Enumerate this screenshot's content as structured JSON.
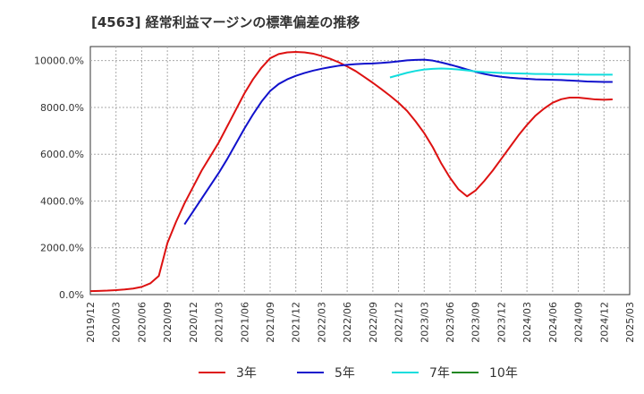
{
  "chart_data": {
    "type": "line",
    "title": "[4563]  経常利益マージンの標準偏差の推移",
    "xlabel": "",
    "ylabel": "",
    "ylim": [
      0,
      10600
    ],
    "y_ticks": [
      "0.0%",
      "2000.0%",
      "4000.0%",
      "6000.0%",
      "8000.0%",
      "10000.0%"
    ],
    "y_tick_values": [
      0,
      2000,
      4000,
      6000,
      8000,
      10000
    ],
    "x_ticks": [
      "2019/12",
      "2020/03",
      "2020/06",
      "2020/09",
      "2020/12",
      "2021/03",
      "2021/06",
      "2021/09",
      "2021/12",
      "2022/03",
      "2022/06",
      "2022/09",
      "2022/12",
      "2023/03",
      "2023/06",
      "2023/09",
      "2023/12",
      "2024/03",
      "2024/06",
      "2024/09",
      "2024/12",
      "2025/03"
    ],
    "grid": true,
    "legend_position": "bottom",
    "series": [
      {
        "name": "3年",
        "color": "#dd1111",
        "points": [
          [
            "2019/12",
            150
          ],
          [
            "2020/01",
            160
          ],
          [
            "2020/02",
            170
          ],
          [
            "2020/03",
            190
          ],
          [
            "2020/04",
            220
          ],
          [
            "2020/05",
            260
          ],
          [
            "2020/06",
            330
          ],
          [
            "2020/07",
            480
          ],
          [
            "2020/08",
            800
          ],
          [
            "2020/09",
            2200
          ],
          [
            "2020/10",
            3100
          ],
          [
            "2020/11",
            3900
          ],
          [
            "2020/12",
            4600
          ],
          [
            "2021/01",
            5300
          ],
          [
            "2021/02",
            5900
          ],
          [
            "2021/03",
            6500
          ],
          [
            "2021/04",
            7200
          ],
          [
            "2021/05",
            7900
          ],
          [
            "2021/06",
            8600
          ],
          [
            "2021/07",
            9200
          ],
          [
            "2021/08",
            9700
          ],
          [
            "2021/09",
            10100
          ],
          [
            "2021/10",
            10280
          ],
          [
            "2021/11",
            10350
          ],
          [
            "2021/12",
            10370
          ],
          [
            "2022/01",
            10350
          ],
          [
            "2022/02",
            10300
          ],
          [
            "2022/03",
            10200
          ],
          [
            "2022/04",
            10080
          ],
          [
            "2022/05",
            9930
          ],
          [
            "2022/06",
            9750
          ],
          [
            "2022/07",
            9550
          ],
          [
            "2022/08",
            9300
          ],
          [
            "2022/09",
            9050
          ],
          [
            "2022/10",
            8780
          ],
          [
            "2022/11",
            8500
          ],
          [
            "2022/12",
            8200
          ],
          [
            "2023/01",
            7850
          ],
          [
            "2023/02",
            7400
          ],
          [
            "2023/03",
            6900
          ],
          [
            "2023/04",
            6300
          ],
          [
            "2023/05",
            5600
          ],
          [
            "2023/06",
            5000
          ],
          [
            "2023/07",
            4500
          ],
          [
            "2023/08",
            4200
          ],
          [
            "2023/09",
            4450
          ],
          [
            "2023/10",
            4850
          ],
          [
            "2023/11",
            5300
          ],
          [
            "2023/12",
            5800
          ],
          [
            "2024/01",
            6300
          ],
          [
            "2024/02",
            6800
          ],
          [
            "2024/03",
            7250
          ],
          [
            "2024/04",
            7650
          ],
          [
            "2024/05",
            7950
          ],
          [
            "2024/06",
            8200
          ],
          [
            "2024/07",
            8350
          ],
          [
            "2024/08",
            8420
          ],
          [
            "2024/09",
            8420
          ],
          [
            "2024/10",
            8380
          ],
          [
            "2024/11",
            8340
          ],
          [
            "2024/12",
            8330
          ],
          [
            "2025/01",
            8340
          ]
        ]
      },
      {
        "name": "5年",
        "color": "#1111cc",
        "points": [
          [
            "2020/11",
            3000
          ],
          [
            "2020/12",
            3550
          ],
          [
            "2021/01",
            4100
          ],
          [
            "2021/02",
            4650
          ],
          [
            "2021/03",
            5200
          ],
          [
            "2021/04",
            5800
          ],
          [
            "2021/05",
            6450
          ],
          [
            "2021/06",
            7100
          ],
          [
            "2021/07",
            7700
          ],
          [
            "2021/08",
            8250
          ],
          [
            "2021/09",
            8700
          ],
          [
            "2021/10",
            9000
          ],
          [
            "2021/11",
            9200
          ],
          [
            "2021/12",
            9350
          ],
          [
            "2022/01",
            9470
          ],
          [
            "2022/02",
            9570
          ],
          [
            "2022/03",
            9650
          ],
          [
            "2022/04",
            9720
          ],
          [
            "2022/05",
            9780
          ],
          [
            "2022/06",
            9820
          ],
          [
            "2022/07",
            9850
          ],
          [
            "2022/08",
            9870
          ],
          [
            "2022/09",
            9880
          ],
          [
            "2022/10",
            9900
          ],
          [
            "2022/11",
            9930
          ],
          [
            "2022/12",
            9970
          ],
          [
            "2023/01",
            10010
          ],
          [
            "2023/02",
            10030
          ],
          [
            "2023/03",
            10040
          ],
          [
            "2023/04",
            10000
          ],
          [
            "2023/05",
            9920
          ],
          [
            "2023/06",
            9830
          ],
          [
            "2023/07",
            9730
          ],
          [
            "2023/08",
            9620
          ],
          [
            "2023/09",
            9520
          ],
          [
            "2023/10",
            9430
          ],
          [
            "2023/11",
            9360
          ],
          [
            "2023/12",
            9310
          ],
          [
            "2024/01",
            9270
          ],
          [
            "2024/02",
            9240
          ],
          [
            "2024/03",
            9220
          ],
          [
            "2024/04",
            9200
          ],
          [
            "2024/05",
            9190
          ],
          [
            "2024/06",
            9180
          ],
          [
            "2024/07",
            9170
          ],
          [
            "2024/08",
            9150
          ],
          [
            "2024/09",
            9130
          ],
          [
            "2024/10",
            9110
          ],
          [
            "2024/11",
            9100
          ],
          [
            "2024/12",
            9090
          ],
          [
            "2025/01",
            9090
          ]
        ]
      },
      {
        "name": "7年",
        "color": "#11dddd",
        "points": [
          [
            "2022/11",
            9280
          ],
          [
            "2022/12",
            9380
          ],
          [
            "2023/01",
            9480
          ],
          [
            "2023/02",
            9560
          ],
          [
            "2023/03",
            9620
          ],
          [
            "2023/04",
            9650
          ],
          [
            "2023/05",
            9660
          ],
          [
            "2023/06",
            9650
          ],
          [
            "2023/07",
            9620
          ],
          [
            "2023/08",
            9580
          ],
          [
            "2023/09",
            9540
          ],
          [
            "2023/10",
            9510
          ],
          [
            "2023/11",
            9490
          ],
          [
            "2023/12",
            9470
          ],
          [
            "2024/01",
            9460
          ],
          [
            "2024/02",
            9450
          ],
          [
            "2024/03",
            9440
          ],
          [
            "2024/04",
            9430
          ],
          [
            "2024/05",
            9430
          ],
          [
            "2024/06",
            9420
          ],
          [
            "2024/07",
            9420
          ],
          [
            "2024/08",
            9410
          ],
          [
            "2024/09",
            9410
          ],
          [
            "2024/10",
            9400
          ],
          [
            "2024/11",
            9400
          ],
          [
            "2024/12",
            9400
          ],
          [
            "2025/01",
            9400
          ]
        ]
      },
      {
        "name": "10年",
        "color": "#228822",
        "points": []
      }
    ]
  }
}
